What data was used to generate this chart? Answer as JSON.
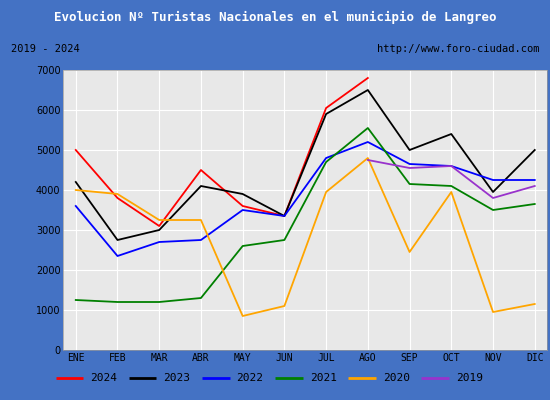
{
  "title": "Evolucion Nº Turistas Nacionales en el municipio de Langreo",
  "subtitle_left": "2019 - 2024",
  "subtitle_right": "http://www.foro-ciudad.com",
  "title_bg": "#4472c4",
  "months": [
    "ENE",
    "FEB",
    "MAR",
    "ABR",
    "MAY",
    "JUN",
    "JUL",
    "AGO",
    "SEP",
    "OCT",
    "NOV",
    "DIC"
  ],
  "series": {
    "2024": {
      "color": "red",
      "data": [
        5000,
        3800,
        3100,
        4500,
        3600,
        3350,
        6050,
        6800,
        null,
        null,
        null,
        null
      ]
    },
    "2023": {
      "color": "black",
      "data": [
        4200,
        2750,
        3000,
        4100,
        3900,
        3350,
        5900,
        6500,
        5000,
        5400,
        3950,
        5000
      ]
    },
    "2022": {
      "color": "blue",
      "data": [
        3600,
        2350,
        2700,
        2750,
        3500,
        3350,
        4800,
        5200,
        4650,
        4600,
        4250,
        4250
      ]
    },
    "2021": {
      "color": "green",
      "data": [
        1250,
        1200,
        1200,
        1300,
        2600,
        2750,
        4700,
        5550,
        4150,
        4100,
        3500,
        3650
      ]
    },
    "2020": {
      "color": "orange",
      "data": [
        4000,
        3900,
        3250,
        3250,
        850,
        1100,
        3950,
        4800,
        2450,
        3950,
        950,
        1150
      ]
    },
    "2019": {
      "color": "#9933cc",
      "data": [
        null,
        null,
        null,
        null,
        null,
        null,
        null,
        4750,
        4550,
        4600,
        3800,
        4100
      ]
    }
  },
  "ylim": [
    0,
    7000
  ],
  "yticks": [
    0,
    1000,
    2000,
    3000,
    4000,
    5000,
    6000,
    7000
  ],
  "legend_order": [
    "2024",
    "2023",
    "2022",
    "2021",
    "2020",
    "2019"
  ],
  "plot_bg": "#e8e8e8",
  "border_color": "#4472c4",
  "grid_color": "white"
}
